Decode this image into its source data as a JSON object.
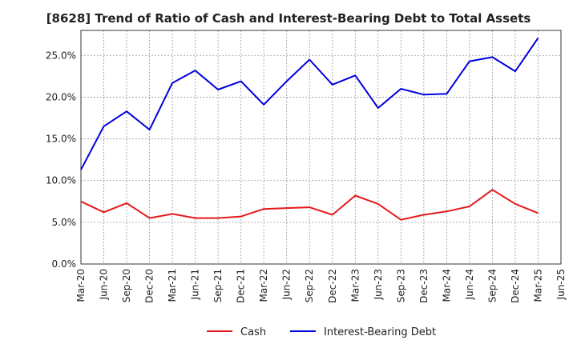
{
  "chart_data": {
    "type": "line",
    "title": "[8628]  Trend of Ratio of Cash and Interest-Bearing Debt to Total Assets",
    "xlabel": "",
    "ylabel": "",
    "categories": [
      "Mar-20",
      "Jun-20",
      "Sep-20",
      "Dec-20",
      "Mar-21",
      "Jun-21",
      "Sep-21",
      "Dec-21",
      "Mar-22",
      "Jun-22",
      "Sep-22",
      "Dec-22",
      "Mar-23",
      "Jun-23",
      "Sep-23",
      "Dec-23",
      "Mar-24",
      "Jun-24",
      "Sep-24",
      "Dec-24",
      "Mar-25",
      "Jun-25"
    ],
    "ylim": [
      0,
      28
    ],
    "yticks": [
      0,
      5,
      10,
      15,
      20,
      25
    ],
    "ytick_labels": [
      "0.0%",
      "5.0%",
      "10.0%",
      "15.0%",
      "20.0%",
      "25.0%"
    ],
    "grid": true,
    "legend_position": "bottom-center",
    "series": [
      {
        "name": "Cash",
        "color": "#e31a1c",
        "values": [
          7.5,
          6.2,
          7.3,
          5.5,
          6.0,
          5.5,
          5.5,
          5.7,
          6.6,
          6.7,
          6.8,
          5.9,
          8.2,
          7.2,
          5.3,
          5.9,
          6.3,
          6.9,
          8.9,
          7.2,
          6.1,
          null
        ]
      },
      {
        "name": "Interest-Bearing Debt",
        "color": "#0000dd",
        "values": [
          11.3,
          16.5,
          18.3,
          16.1,
          21.7,
          23.2,
          20.9,
          21.9,
          19.1,
          21.9,
          24.5,
          21.5,
          22.6,
          18.7,
          21.0,
          20.3,
          20.4,
          24.3,
          24.8,
          23.1,
          27.1,
          null
        ]
      }
    ]
  }
}
